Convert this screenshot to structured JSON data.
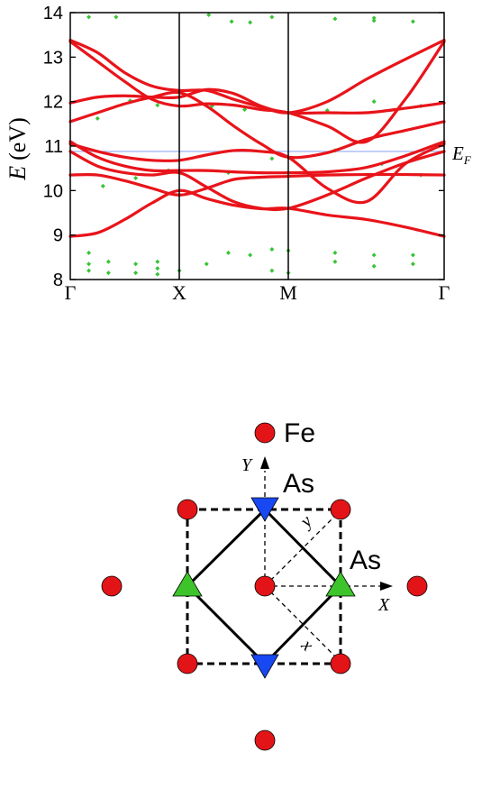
{
  "chart_data": {
    "type": "line",
    "ylabel": "E (eV)",
    "ylabel_symbol": "E",
    "ylabel_unit": "(eV)",
    "ylim": [
      8,
      14
    ],
    "yticks": [
      "8",
      "9",
      "10",
      "11",
      "12",
      "13",
      "14"
    ],
    "kpoints": [
      "Γ",
      "X",
      "M",
      "Γ"
    ],
    "fermi_energy": 10.88,
    "fermi_label": "E",
    "fermi_sub": "F",
    "colors": {
      "bands": "#e8141a",
      "points": "#37c435",
      "fermi": "#a7b9f5",
      "axes": "#000000"
    },
    "band_knots": [
      0,
      1,
      2,
      3
    ],
    "series": [
      {
        "values": [
          [
            0,
            8.97
          ],
          [
            0.25,
            9.05
          ],
          [
            0.5,
            9.35
          ],
          [
            0.75,
            9.72
          ],
          [
            1,
            10.0
          ],
          [
            1.25,
            9.82
          ],
          [
            1.5,
            9.67
          ],
          [
            1.75,
            9.59
          ],
          [
            2,
            9.6
          ],
          [
            2.25,
            9.45
          ],
          [
            2.5,
            9.35
          ],
          [
            2.75,
            9.18
          ],
          [
            3,
            8.97
          ]
        ]
      },
      {
        "values": [
          [
            0,
            10.35
          ],
          [
            0.25,
            10.35
          ],
          [
            0.5,
            10.22
          ],
          [
            0.75,
            10.05
          ],
          [
            1,
            9.9
          ],
          [
            1.25,
            10.05
          ],
          [
            1.5,
            10.25
          ],
          [
            1.75,
            10.3
          ],
          [
            2,
            10.32
          ],
          [
            2.25,
            10.35
          ],
          [
            2.5,
            10.36
          ],
          [
            2.75,
            10.36
          ],
          [
            3,
            10.35
          ]
        ]
      },
      {
        "values": [
          [
            0,
            10.88
          ],
          [
            0.25,
            10.55
          ],
          [
            0.5,
            10.4
          ],
          [
            0.75,
            10.35
          ],
          [
            1,
            10.4
          ],
          [
            1.25,
            10.08
          ],
          [
            1.5,
            9.75
          ],
          [
            1.75,
            9.6
          ],
          [
            2,
            9.6
          ],
          [
            2.25,
            9.9
          ],
          [
            2.5,
            10.28
          ],
          [
            2.75,
            10.62
          ],
          [
            3,
            10.88
          ]
        ]
      },
      {
        "values": [
          [
            0,
            11.1
          ],
          [
            0.25,
            10.75
          ],
          [
            0.5,
            10.55
          ],
          [
            0.75,
            10.45
          ],
          [
            1,
            10.45
          ],
          [
            1.25,
            10.45
          ],
          [
            1.5,
            10.42
          ],
          [
            1.75,
            10.4
          ],
          [
            2,
            10.4
          ],
          [
            2.25,
            10.42
          ],
          [
            2.5,
            10.52
          ],
          [
            2.75,
            10.78
          ],
          [
            3,
            11.1
          ]
        ]
      },
      {
        "values": [
          [
            0,
            11.05
          ],
          [
            0.25,
            10.88
          ],
          [
            0.5,
            10.75
          ],
          [
            0.75,
            10.68
          ],
          [
            1,
            10.68
          ],
          [
            1.25,
            10.8
          ],
          [
            1.5,
            10.9
          ],
          [
            1.75,
            10.88
          ],
          [
            2,
            10.75
          ],
          [
            2.25,
            10.05
          ],
          [
            2.5,
            9.75
          ],
          [
            2.75,
            10.6
          ],
          [
            3,
            11.05
          ]
        ]
      },
      {
        "values": [
          [
            0,
            11.55
          ],
          [
            0.25,
            11.75
          ],
          [
            0.5,
            11.95
          ],
          [
            0.75,
            12.1
          ],
          [
            1,
            12.2
          ],
          [
            1.25,
            11.9
          ],
          [
            1.5,
            11.45
          ],
          [
            1.75,
            11.05
          ],
          [
            2,
            10.75
          ],
          [
            2.25,
            10.85
          ],
          [
            2.5,
            11.15
          ],
          [
            2.75,
            11.35
          ],
          [
            3,
            11.55
          ]
        ]
      },
      {
        "values": [
          [
            0,
            11.97
          ],
          [
            0.25,
            12.1
          ],
          [
            0.5,
            12.13
          ],
          [
            0.75,
            12.1
          ],
          [
            1,
            12.1
          ],
          [
            1.25,
            12.27
          ],
          [
            1.5,
            12.18
          ],
          [
            1.75,
            11.9
          ],
          [
            2,
            11.75
          ],
          [
            2.25,
            11.75
          ],
          [
            2.5,
            11.75
          ],
          [
            2.75,
            11.85
          ],
          [
            3,
            11.97
          ]
        ]
      },
      {
        "values": [
          [
            0,
            13.35
          ],
          [
            0.25,
            12.9
          ],
          [
            0.5,
            12.45
          ],
          [
            0.75,
            12.05
          ],
          [
            1,
            11.9
          ],
          [
            1.25,
            11.95
          ],
          [
            1.5,
            11.92
          ],
          [
            1.75,
            11.82
          ],
          [
            2,
            11.75
          ],
          [
            2.25,
            11.45
          ],
          [
            2.5,
            11.1
          ],
          [
            2.75,
            12.05
          ],
          [
            3,
            13.35
          ]
        ]
      },
      {
        "values": [
          [
            0,
            13.38
          ],
          [
            0.25,
            13.1
          ],
          [
            0.5,
            12.65
          ],
          [
            0.75,
            12.35
          ],
          [
            1,
            12.25
          ],
          [
            1.25,
            12.25
          ],
          [
            1.5,
            12.05
          ],
          [
            1.75,
            11.88
          ],
          [
            2,
            11.75
          ],
          [
            2.25,
            12.0
          ],
          [
            2.5,
            12.5
          ],
          [
            2.75,
            12.95
          ],
          [
            3,
            13.38
          ]
        ]
      }
    ],
    "points": [
      [
        0.17,
        13.9
      ],
      [
        0.42,
        13.9
      ],
      [
        1.27,
        13.95
      ],
      [
        1.48,
        13.8
      ],
      [
        1.65,
        13.78
      ],
      [
        1.85,
        13.9
      ],
      [
        2.3,
        13.86
      ],
      [
        2.55,
        13.88
      ],
      [
        2.55,
        13.82
      ],
      [
        2.8,
        13.8
      ],
      [
        0.17,
        8.6
      ],
      [
        0.17,
        8.35
      ],
      [
        0.17,
        8.2
      ],
      [
        0.35,
        8.4
      ],
      [
        0.35,
        8.15
      ],
      [
        0.6,
        8.35
      ],
      [
        0.6,
        8.15
      ],
      [
        0.8,
        8.4
      ],
      [
        0.8,
        8.25
      ],
      [
        0.8,
        8.12
      ],
      [
        1,
        8.2
      ],
      [
        1.25,
        8.35
      ],
      [
        1.45,
        8.6
      ],
      [
        1.65,
        8.55
      ],
      [
        1.85,
        8.68
      ],
      [
        1.85,
        8.2
      ],
      [
        2,
        8.65
      ],
      [
        2,
        8.15
      ],
      [
        2.3,
        8.6
      ],
      [
        2.3,
        8.4
      ],
      [
        2.55,
        8.55
      ],
      [
        2.55,
        8.3
      ],
      [
        2.8,
        8.55
      ],
      [
        2.8,
        8.35
      ],
      [
        0.3,
        10.1
      ],
      [
        0.6,
        10.28
      ],
      [
        0.9,
        10.45
      ],
      [
        1.45,
        10.4
      ],
      [
        1.85,
        10.72
      ],
      [
        2.3,
        10.9
      ],
      [
        2.6,
        10.6
      ],
      [
        2.85,
        10.35
      ],
      [
        0.25,
        11.62
      ],
      [
        0.55,
        12.02
      ],
      [
        0.8,
        11.92
      ],
      [
        1.3,
        11.9
      ],
      [
        1.6,
        11.82
      ],
      [
        2.25,
        11.8
      ],
      [
        2.55,
        12.0
      ],
      [
        2.85,
        11.9
      ]
    ]
  },
  "lattice": {
    "fe_label": "Fe",
    "as_top_label": "As",
    "as_right_label": "As",
    "axis_X_label": "X",
    "axis_Y_label": "Y",
    "axis_x_label": "x",
    "axis_y_label": "y",
    "colors": {
      "fe": "#e31417",
      "as_up": "#3ec42b",
      "as_down": "#1848f2"
    }
  }
}
